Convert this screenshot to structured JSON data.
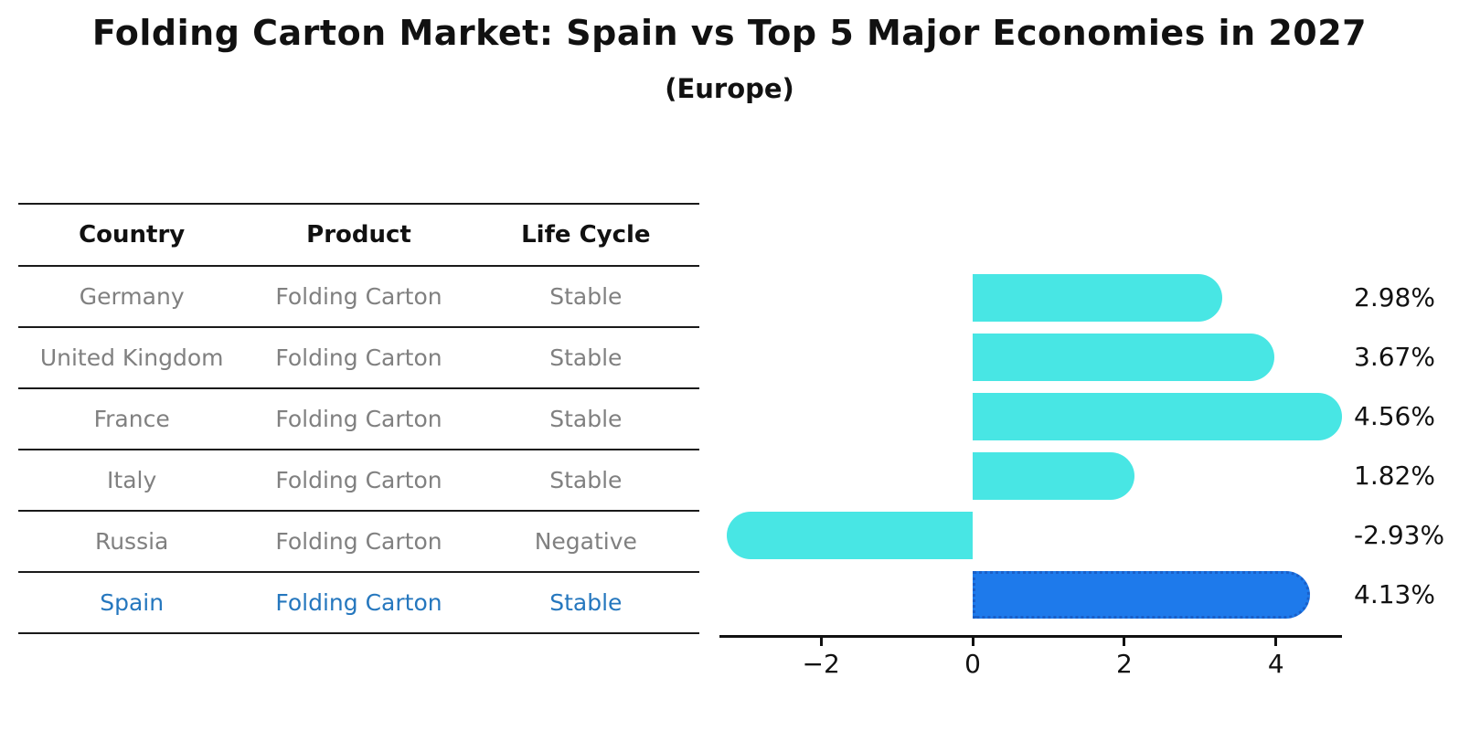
{
  "table": {
    "headers": [
      "Country",
      "Product",
      "Life Cycle"
    ],
    "rows": [
      {
        "country": "Germany",
        "product": "Folding Carton",
        "life_cycle": "Stable",
        "highlight": false
      },
      {
        "country": "United Kingdom",
        "product": "Folding Carton",
        "life_cycle": "Stable",
        "highlight": false
      },
      {
        "country": "France",
        "product": "Folding Carton",
        "life_cycle": "Stable",
        "highlight": false
      },
      {
        "country": "Italy",
        "product": "Folding Carton",
        "life_cycle": "Stable",
        "highlight": false
      },
      {
        "country": "Russia",
        "product": "Folding Carton",
        "life_cycle": "Negative",
        "highlight": false
      },
      {
        "country": "Spain",
        "product": "Folding Carton",
        "life_cycle": "Stable",
        "highlight": true
      }
    ]
  },
  "chart_data": {
    "type": "bar",
    "orientation": "horizontal",
    "title": "Folding Carton Market: Spain vs Top 5 Major Economies in 2027",
    "subtitle": "(Europe)",
    "categories": [
      "Germany",
      "United Kingdom",
      "France",
      "Italy",
      "Russia",
      "Spain"
    ],
    "values": [
      2.98,
      3.67,
      4.56,
      1.82,
      -2.93,
      4.13
    ],
    "value_labels": [
      "2.98%",
      "3.67%",
      "4.56%",
      "1.82%",
      "-2.93%",
      "4.13%"
    ],
    "unit": "%",
    "xlim": [
      -3.34,
      4.87
    ],
    "x_ticks": [
      -2,
      0,
      2,
      4
    ],
    "x_tick_labels": [
      "−2",
      "0",
      "2",
      "4"
    ],
    "grid": false,
    "legend": false,
    "highlight_category": "Spain",
    "colors": {
      "bar": "#48E6E4",
      "highlight": "#1E7AEB",
      "highlight_border": "#1A5FC8",
      "axis": "#111111",
      "label": "#111111",
      "table_text": "#808080",
      "table_highlight_text": "#2577BE"
    }
  }
}
